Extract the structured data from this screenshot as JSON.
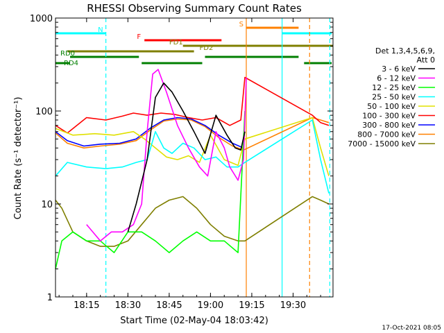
{
  "chart_data": {
    "type": "line",
    "title": "RHESSI Observing Summary Count Rates",
    "xlabel": "Start Time (02-May-04 18:03:42)",
    "ylabel": "Count Rate (s⁻¹ detector⁻¹)",
    "yscale": "log",
    "xlim": [
      "18:03:42",
      "19:44:30"
    ],
    "ylim": [
      1,
      1000
    ],
    "x_ticks": [
      "18:15",
      "18:30",
      "18:45",
      "19:00",
      "19:15",
      "19:30"
    ],
    "y_ticks": [
      "1",
      "10",
      "100",
      "1000"
    ],
    "footer_date": "17-Oct-2021 08:05",
    "legend": {
      "header_lines": [
        "Det 1,3,4,5,6,9,",
        "Att 0"
      ],
      "position": "right"
    },
    "flag_bars": [
      {
        "label": "N",
        "color": "#00ffff",
        "segments": [
          [
            "18:03:42",
            "18:22:00"
          ],
          [
            "19:26:00",
            "19:44:00"
          ]
        ]
      },
      {
        "label": "S",
        "color": "#ff8000",
        "segments": [
          [
            "19:13:00",
            "19:32:00"
          ]
        ]
      },
      {
        "label": "F",
        "color": "#ff0000",
        "segments": [
          [
            "18:36:00",
            "19:04:00"
          ]
        ]
      },
      {
        "label": "FD1",
        "color": "#7f7f00",
        "segments": [
          [
            "18:50:00",
            "19:44:30"
          ]
        ]
      },
      {
        "label": "FD2",
        "color": "#7f7f00",
        "segments": [
          [
            "18:08:00",
            "18:54:00"
          ]
        ]
      },
      {
        "label": "RD0",
        "color": "#007f00",
        "segments": [
          [
            "18:09:00",
            "18:34:00"
          ],
          [
            "18:58:00",
            "19:32:00"
          ]
        ]
      },
      {
        "label": "RD4",
        "color": "#007f00",
        "segments": [
          [
            "18:03:42",
            "18:09:00"
          ],
          [
            "18:35:00",
            "18:57:00"
          ],
          [
            "19:34:00",
            "19:44:00"
          ]
        ]
      }
    ],
    "event_lines": [
      {
        "time": "18:22:00",
        "color": "#00ffff",
        "style": "dashed"
      },
      {
        "time": "19:13:00",
        "color": "#ff8000",
        "style": "solid"
      },
      {
        "time": "19:26:00",
        "color": "#00ffff",
        "style": "solid"
      },
      {
        "time": "19:36:00",
        "color": "#ff8000",
        "style": "dashed"
      },
      {
        "time": "19:43:20",
        "color": "#00ffff",
        "style": "dashed"
      }
    ],
    "gaps": [
      [
        "19:13:00",
        "19:38:00"
      ]
    ],
    "series": [
      {
        "name": "3 - 6 keV",
        "color": "#000000",
        "x": [
          "18:30:00",
          "18:33:00",
          "18:37:00",
          "18:40:00",
          "18:43:00",
          "18:46:00",
          "18:50:00",
          "18:54:00",
          "18:58:00",
          "19:02:00",
          "19:06:00",
          "19:09:00",
          "19:11:00",
          "19:12:30"
        ],
        "values": [
          5,
          10,
          30,
          140,
          200,
          160,
          100,
          60,
          35,
          90,
          55,
          40,
          38,
          60
        ]
      },
      {
        "name": "6 - 12 keV",
        "color": "#ff00ff",
        "x": [
          "18:15:00",
          "18:20:00",
          "18:24:00",
          "18:28:00",
          "18:32:00",
          "18:35:00",
          "18:37:00",
          "18:39:00",
          "18:41:00",
          "18:44:00",
          "18:48:00",
          "18:52:00",
          "18:56:00",
          "18:59:00",
          "19:02:00",
          "19:05:00",
          "19:07:00",
          "19:10:00",
          "19:12:00",
          "19:13:00"
        ],
        "values": [
          6,
          4,
          5,
          5,
          6,
          10,
          60,
          250,
          280,
          160,
          70,
          40,
          25,
          20,
          60,
          40,
          25,
          18,
          30,
          230
        ]
      },
      {
        "name": "12 - 25 keV",
        "color": "#00ff00",
        "x": [
          "18:03:42",
          "18:06:00",
          "18:10:00",
          "18:15:00",
          "18:20:00",
          "18:25:00",
          "18:30:00",
          "18:35:00",
          "18:40:00",
          "18:45:00",
          "18:50:00",
          "18:55:00",
          "19:00:00",
          "19:05:00",
          "19:10:00",
          "19:12:30"
        ],
        "values": [
          2,
          4,
          5,
          4,
          4,
          3,
          5,
          5,
          4,
          3,
          4,
          5,
          4,
          4,
          3,
          100
        ]
      },
      {
        "name": "25 - 50 keV",
        "color": "#00ffff",
        "x": [
          "18:03:42",
          "18:08:00",
          "18:15:00",
          "18:22:00",
          "18:28:00",
          "18:33:00",
          "18:37:00",
          "18:40:00",
          "18:43:00",
          "18:46:00",
          "18:50:00",
          "18:54:00",
          "18:58:00",
          "19:02:00",
          "19:06:00",
          "19:10:00",
          "19:12:30",
          "19:37:00",
          "19:40:00",
          "19:43:00"
        ],
        "values": [
          20,
          28,
          25,
          24,
          25,
          28,
          30,
          60,
          40,
          35,
          45,
          40,
          30,
          32,
          25,
          25,
          28,
          80,
          30,
          13
        ]
      },
      {
        "name": "50 - 100 keV",
        "color": "#e0e000",
        "x": [
          "18:03:42",
          "18:10:00",
          "18:18:00",
          "18:25:00",
          "18:32:00",
          "18:36:00",
          "18:40:00",
          "18:44:00",
          "18:48:00",
          "18:52:00",
          "18:56:00",
          "19:00:00",
          "19:05:00",
          "19:10:00",
          "19:12:30",
          "19:37:00",
          "19:40:00",
          "19:43:00"
        ],
        "values": [
          65,
          55,
          57,
          55,
          60,
          50,
          40,
          32,
          30,
          33,
          28,
          55,
          30,
          26,
          50,
          85,
          40,
          20
        ]
      },
      {
        "name": "100 - 300 keV",
        "color": "#ff0000",
        "x": [
          "18:03:42",
          "18:08:00",
          "18:15:00",
          "18:22:00",
          "18:28:00",
          "18:32:00",
          "18:37:00",
          "18:42:00",
          "18:47:00",
          "18:52:00",
          "18:57:00",
          "19:02:00",
          "19:07:00",
          "19:11:00",
          "19:12:30",
          "19:37:00",
          "19:40:00",
          "19:43:00"
        ],
        "values": [
          70,
          58,
          85,
          80,
          88,
          95,
          90,
          95,
          92,
          85,
          80,
          85,
          70,
          80,
          230,
          90,
          75,
          70
        ]
      },
      {
        "name": "300 - 800 keV",
        "color": "#0000ff",
        "x": [
          "18:03:42",
          "18:08:00",
          "18:14:00",
          "18:20:00",
          "18:27:00",
          "18:33:00",
          "18:38:00",
          "18:43:00",
          "18:48:00",
          "18:53:00",
          "18:58:00",
          "19:03:00",
          "19:08:00",
          "19:12:00"
        ],
        "values": [
          60,
          48,
          42,
          44,
          45,
          50,
          65,
          80,
          85,
          82,
          70,
          55,
          45,
          40
        ]
      },
      {
        "name": "800 - 7000 keV",
        "color": "#ff8000",
        "x": [
          "18:03:42",
          "18:08:00",
          "18:14:00",
          "18:20:00",
          "18:27:00",
          "18:33:00",
          "18:38:00",
          "18:43:00",
          "18:48:00",
          "18:53:00",
          "18:58:00",
          "19:03:00",
          "19:08:00",
          "19:12:00",
          "19:37:00",
          "19:40:00",
          "19:43:00"
        ],
        "values": [
          58,
          45,
          40,
          42,
          44,
          48,
          62,
          78,
          82,
          80,
          68,
          52,
          42,
          38,
          85,
          80,
          75
        ]
      },
      {
        "name": "7000 - 15000 keV",
        "color": "#7f7f00",
        "x": [
          "18:03:42",
          "18:06:00",
          "18:10:00",
          "18:15:00",
          "18:20:00",
          "18:25:00",
          "18:30:00",
          "18:35:00",
          "18:40:00",
          "18:45:00",
          "18:50:00",
          "18:55:00",
          "19:00:00",
          "19:05:00",
          "19:10:00",
          "19:12:30",
          "19:37:00",
          "19:40:00",
          "19:43:00"
        ],
        "values": [
          11,
          9,
          5,
          4,
          3.5,
          3.5,
          4,
          6,
          9,
          11,
          12,
          9,
          6,
          4.5,
          4,
          4,
          12,
          11,
          10
        ]
      }
    ]
  }
}
